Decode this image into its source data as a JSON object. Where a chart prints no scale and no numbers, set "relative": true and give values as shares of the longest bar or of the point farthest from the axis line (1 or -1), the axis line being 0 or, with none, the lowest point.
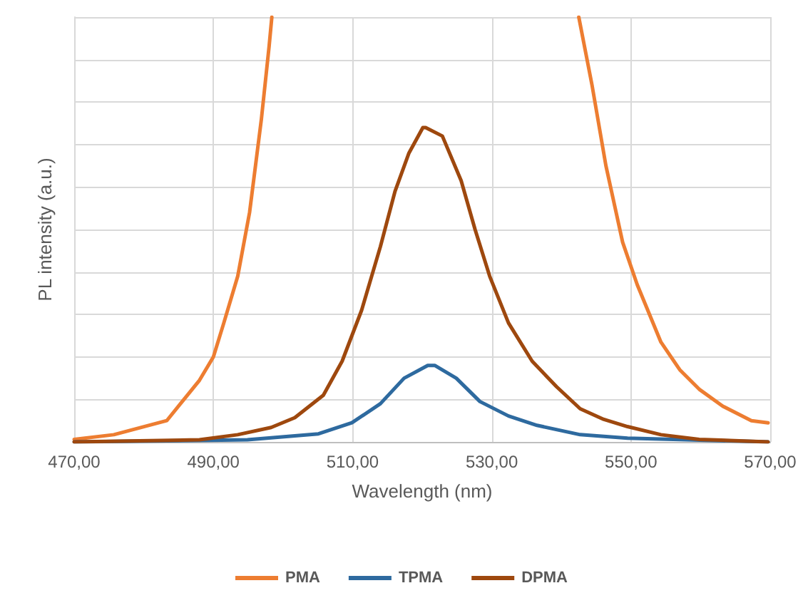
{
  "chart_data": {
    "type": "line",
    "xlabel": "Wavelength (nm)",
    "ylabel": "PL intensity (a.u.)",
    "relative": true,
    "grid": true,
    "legend": "bottom",
    "marker": "none",
    "line_style": "solid",
    "xlim": [
      470,
      570
    ],
    "xticks": [
      {
        "value": 470,
        "label": "470,00"
      },
      {
        "value": 490,
        "label": "490,00"
      },
      {
        "value": 510,
        "label": "510,00"
      },
      {
        "value": 530,
        "label": "530,00"
      },
      {
        "value": 550,
        "label": "550,00"
      },
      {
        "value": 570,
        "label": "570,00"
      }
    ],
    "series": [
      {
        "name": "PMA",
        "color": "#ed7d31",
        "x": [
          470,
          475.7,
          483.3,
          488,
          490,
          491.5,
          493.5,
          495.2,
          496.9,
          498,
          498.4,
          520,
          542.5,
          544.4,
          546.4,
          548.8,
          550.9,
          554.3,
          557,
          559.8,
          563.2,
          567.3,
          569.7
        ],
        "values": [
          0.006,
          0.017,
          0.05,
          0.145,
          0.2,
          0.28,
          0.39,
          0.54,
          0.76,
          0.93,
          1.0,
          null,
          1.0,
          0.84,
          0.65,
          0.47,
          0.37,
          0.235,
          0.17,
          0.124,
          0.084,
          0.05,
          0.045
        ]
      },
      {
        "name": "TPMA",
        "color": "#2e6a9f",
        "x": [
          470,
          494.9,
          505.1,
          509.9,
          514,
          517.4,
          520.8,
          521.8,
          524.9,
          528.3,
          532.4,
          536.5,
          542.7,
          549.5,
          569.7
        ],
        "values": [
          0.0,
          0.005,
          0.019,
          0.045,
          0.09,
          0.15,
          0.18,
          0.18,
          0.15,
          0.095,
          0.061,
          0.039,
          0.017,
          0.009,
          0.0
        ]
      },
      {
        "name": "DPMA",
        "color": "#9e480e",
        "x": [
          470,
          488,
          493.5,
          498.3,
          501.7,
          505.8,
          508.5,
          511.3,
          514,
          516.1,
          518.1,
          520.1,
          520.5,
          522.9,
          525.6,
          527.6,
          529.7,
          532.4,
          535.8,
          539.3,
          542.7,
          546.1,
          549.5,
          554.3,
          559.8,
          569.7
        ],
        "values": [
          0.0,
          0.005,
          0.017,
          0.034,
          0.057,
          0.11,
          0.19,
          0.31,
          0.46,
          0.59,
          0.68,
          0.74,
          0.74,
          0.72,
          0.615,
          0.5,
          0.39,
          0.28,
          0.19,
          0.13,
          0.078,
          0.053,
          0.036,
          0.017,
          0.006,
          0.0
        ]
      }
    ]
  }
}
